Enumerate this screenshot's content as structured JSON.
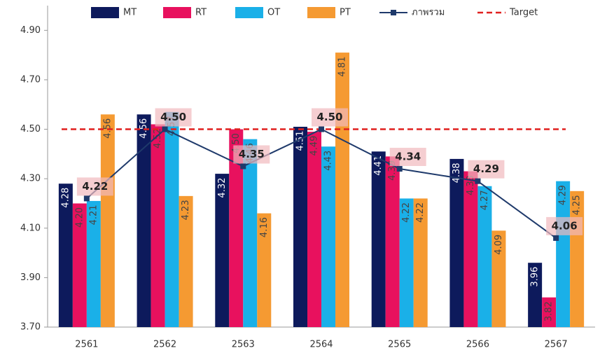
{
  "chart_data": {
    "type": "bar",
    "categories": [
      "2561",
      "2562",
      "2563",
      "2564",
      "2565",
      "2566",
      "2567"
    ],
    "series": [
      {
        "name": "MT",
        "type": "bar",
        "color": "#0d1a5c",
        "values": [
          4.28,
          4.56,
          4.32,
          4.51,
          4.41,
          4.38,
          3.96
        ],
        "value_labels": [
          "4.28",
          "4.56",
          "4.32",
          "4.51",
          "4.41",
          "4.38",
          "3.96"
        ]
      },
      {
        "name": "RT",
        "type": "bar",
        "color": "#e8115e",
        "values": [
          4.2,
          4.52,
          4.5,
          4.49,
          4.39,
          4.33,
          3.82
        ],
        "value_labels": [
          "4.20",
          "4.52",
          "4.50",
          "4.49",
          "4.39",
          "4.33",
          "3.82"
        ]
      },
      {
        "name": "OT",
        "type": "bar",
        "color": "#1ab0e8",
        "values": [
          4.21,
          4.57,
          4.46,
          4.43,
          4.22,
          4.27,
          4.29
        ],
        "value_labels": [
          "4.21",
          "4.57",
          "4.46",
          "4.43",
          "4.22",
          "4.27",
          "4.29"
        ]
      },
      {
        "name": "PT",
        "type": "bar",
        "color": "#f59a32",
        "values": [
          4.56,
          4.23,
          4.16,
          4.81,
          4.22,
          4.09,
          4.25
        ],
        "value_labels": [
          "4.56",
          "4.23",
          "4.16",
          "4.81",
          "4.22",
          "4.09",
          "4.25"
        ]
      },
      {
        "name": "ภาพรวม",
        "type": "line",
        "color": "#1f3a6b",
        "values": [
          4.22,
          4.5,
          4.35,
          4.5,
          4.34,
          4.29,
          4.06
        ],
        "value_labels": [
          "4.22",
          "4.50",
          "4.35",
          "4.50",
          "4.34",
          "4.29",
          "4.06"
        ]
      }
    ],
    "target": {
      "name": "Target",
      "value": 4.5,
      "color": "#e0201f"
    },
    "ylim": [
      3.7,
      5.0
    ],
    "yticks": [
      {
        "value": 3.7,
        "label": "3.70"
      },
      {
        "value": 3.9,
        "label": "3.90"
      },
      {
        "value": 4.1,
        "label": "4.10"
      },
      {
        "value": 4.3,
        "label": "4.30"
      },
      {
        "value": 4.5,
        "label": "4.50"
      },
      {
        "value": 4.7,
        "label": "4.70"
      },
      {
        "value": 4.9,
        "label": "4.90"
      }
    ],
    "legend": "top"
  }
}
